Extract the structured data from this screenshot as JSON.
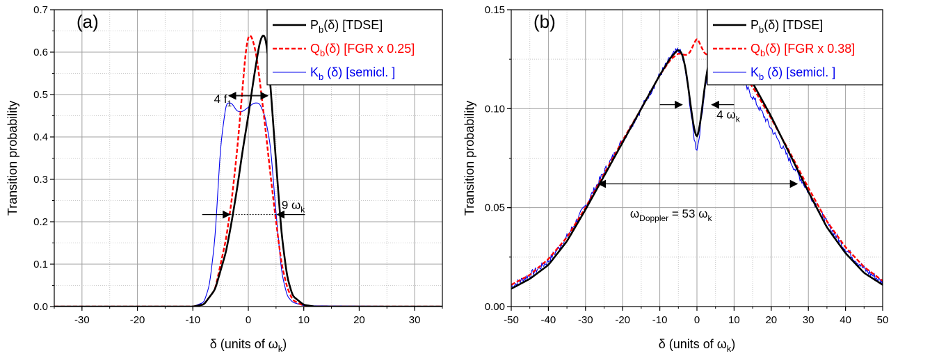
{
  "colors": {
    "tdse": "#000000",
    "fgr": "#ff0000",
    "semicl": "#0000ee",
    "grid_major": "#a0a0a0",
    "grid_minor": "#c8c8c8"
  },
  "chart_data": [
    {
      "type": "line",
      "panel_label": "(a)",
      "xlabel": "δ (units of ω",
      "xlabel_sub": "k",
      "xlabel_tail": ")",
      "ylabel": "Transition probability",
      "xlim": [
        -35,
        35
      ],
      "ylim": [
        0,
        0.7
      ],
      "xticks": [
        -30,
        -20,
        -10,
        0,
        10,
        20,
        30
      ],
      "xtick_labels": [
        "-30",
        "-20",
        "-10",
        "0",
        "10",
        "20",
        "30"
      ],
      "yticks": [
        0,
        0.1,
        0.2,
        0.3,
        0.4,
        0.5,
        0.6,
        0.7
      ],
      "ytick_labels": [
        "0.0",
        "0.1",
        "0.2",
        "0.3",
        "0.4",
        "0.5",
        "0.6",
        "0.7"
      ],
      "grid": true,
      "legend_position": "top-right",
      "series": [
        {
          "key": "tdse",
          "legend_main": "P",
          "legend_sub": "b",
          "legend_tail": "(δ)  [TDSE]",
          "x": [
            -35,
            -10,
            -8,
            -6,
            -4,
            -3,
            -2,
            -1,
            0,
            1,
            2,
            2.5,
            3,
            3.5,
            4,
            5,
            6,
            7,
            8,
            10,
            12,
            35
          ],
          "y": [
            0,
            0,
            0.005,
            0.04,
            0.13,
            0.2,
            0.28,
            0.37,
            0.45,
            0.54,
            0.62,
            0.64,
            0.64,
            0.6,
            0.52,
            0.34,
            0.17,
            0.07,
            0.025,
            0.004,
            0,
            0
          ]
        },
        {
          "key": "fgr",
          "legend_main": "Q",
          "legend_sub": "b",
          "legend_tail": "(δ)  [FGR  x 0.25]",
          "x": [
            -35,
            -10,
            -8,
            -6,
            -4,
            -3,
            -2,
            -1,
            -0.5,
            0,
            0.5,
            1,
            1.5,
            2,
            3,
            4,
            5,
            6,
            7,
            8,
            10,
            12,
            35
          ],
          "y": [
            0,
            0,
            0.005,
            0.04,
            0.16,
            0.25,
            0.37,
            0.52,
            0.6,
            0.64,
            0.64,
            0.62,
            0.59,
            0.54,
            0.43,
            0.31,
            0.2,
            0.1,
            0.045,
            0.015,
            0.002,
            0,
            0
          ]
        },
        {
          "key": "semicl",
          "legend_main": "K",
          "legend_sub": "b",
          "legend_tail": " (δ)  [semicl. ]",
          "x": [
            -35,
            -10,
            -8,
            -7,
            -6,
            -5,
            -4,
            -3,
            -2,
            -1,
            0,
            1,
            2,
            3,
            4,
            5,
            6,
            7,
            8,
            10,
            35
          ],
          "y": [
            0,
            0,
            0.01,
            0.05,
            0.16,
            0.38,
            0.48,
            0.48,
            0.46,
            0.46,
            0.47,
            0.48,
            0.48,
            0.45,
            0.38,
            0.22,
            0.08,
            0.025,
            0.01,
            0.002,
            0
          ]
        }
      ],
      "annotations": [
        {
          "main": "4 f",
          "sub": "1",
          "x": -6.2,
          "y": 0.48
        },
        {
          "main": "9 ω",
          "sub": "k",
          "x": 6,
          "y": 0.23
        }
      ],
      "arrows": [
        {
          "y": 0.497,
          "left": -3.5,
          "right": 3.5,
          "dashed": false
        },
        {
          "y": 0.217,
          "left": -3.3,
          "right": 5.2,
          "dashed": true
        }
      ]
    },
    {
      "type": "line",
      "panel_label": "(b)",
      "xlabel": "δ (units of ω",
      "xlabel_sub": "k",
      "xlabel_tail": ")",
      "ylabel": "Transition probability",
      "xlim": [
        -50,
        50
      ],
      "ylim": [
        0,
        0.15
      ],
      "xticks": [
        -50,
        -40,
        -30,
        -20,
        -10,
        0,
        10,
        20,
        30,
        40,
        50
      ],
      "xtick_labels": [
        "-50",
        "-40",
        "-30",
        "-20",
        "-10",
        "0",
        "10",
        "20",
        "30",
        "40",
        "50"
      ],
      "yticks": [
        0,
        0.05,
        0.1,
        0.15
      ],
      "ytick_labels": [
        "0.00",
        "0.05",
        "0.10",
        "0.15"
      ],
      "grid": true,
      "legend_position": "top-right",
      "series": [
        {
          "key": "tdse",
          "legend_main": "P",
          "legend_sub": "b",
          "legend_tail": "(δ)  [TDSE]",
          "x": [
            -50,
            -45,
            -40,
            -35,
            -30,
            -25,
            -20,
            -15,
            -10,
            -7,
            -5,
            -4,
            -3,
            -2,
            -1,
            0,
            1,
            2,
            3,
            4,
            5,
            7,
            10,
            15,
            20,
            25,
            30,
            35,
            40,
            45,
            50
          ],
          "y": [
            0.009,
            0.014,
            0.021,
            0.033,
            0.049,
            0.066,
            0.083,
            0.1,
            0.117,
            0.126,
            0.13,
            0.128,
            0.12,
            0.106,
            0.092,
            0.084,
            0.094,
            0.11,
            0.122,
            0.13,
            0.133,
            0.131,
            0.126,
            0.113,
            0.096,
            0.077,
            0.058,
            0.04,
            0.027,
            0.017,
            0.011
          ]
        },
        {
          "key": "fgr",
          "legend_main": "Q",
          "legend_sub": "b",
          "legend_tail": "(δ)  [FGR  x 0.38]",
          "x": [
            -50,
            -45,
            -40,
            -35,
            -30,
            -25,
            -20,
            -15,
            -10,
            -7,
            -5,
            -3,
            -2,
            -1,
            0,
            1,
            2,
            3,
            5,
            7,
            10,
            15,
            20,
            25,
            30,
            35,
            40,
            45,
            50
          ],
          "y": [
            0.011,
            0.016,
            0.024,
            0.035,
            0.05,
            0.067,
            0.084,
            0.1,
            0.117,
            0.125,
            0.128,
            0.127,
            0.128,
            0.132,
            0.136,
            0.132,
            0.128,
            0.127,
            0.13,
            0.128,
            0.122,
            0.111,
            0.095,
            0.078,
            0.06,
            0.043,
            0.03,
            0.02,
            0.013
          ]
        },
        {
          "key": "semicl",
          "legend_main": "K",
          "legend_sub": "b",
          "legend_tail": " (δ)  [semicl. ]",
          "noisy": true,
          "x": [
            -50,
            -45,
            -40,
            -35,
            -30,
            -25,
            -20,
            -15,
            -10,
            -7,
            -5,
            -4,
            -3,
            -2,
            -1,
            0,
            1,
            2,
            3,
            4,
            5,
            7,
            10,
            15,
            20,
            25,
            30,
            35,
            40,
            45,
            50
          ],
          "y": [
            0.01,
            0.016,
            0.023,
            0.035,
            0.051,
            0.068,
            0.084,
            0.1,
            0.117,
            0.126,
            0.13,
            0.127,
            0.118,
            0.104,
            0.088,
            0.077,
            0.092,
            0.108,
            0.12,
            0.128,
            0.13,
            0.127,
            0.12,
            0.106,
            0.09,
            0.074,
            0.058,
            0.042,
            0.029,
            0.019,
            0.012
          ]
        }
      ],
      "annotations": [
        {
          "main": "4 ω",
          "sub": "k",
          "x": 5.3,
          "y": 0.095
        },
        {
          "main": "ω",
          "sub": "Doppler",
          "tail": " = 53 ω",
          "sub2": "k",
          "x": -18,
          "y": 0.045
        }
      ],
      "arrows": [
        {
          "y": 0.102,
          "left": -10,
          "right": 10,
          "dashed": false,
          "inner_left": -4,
          "inner_right": 4
        },
        {
          "y": 0.062,
          "left": -26.5,
          "right": 27,
          "dashed": false
        }
      ]
    }
  ]
}
